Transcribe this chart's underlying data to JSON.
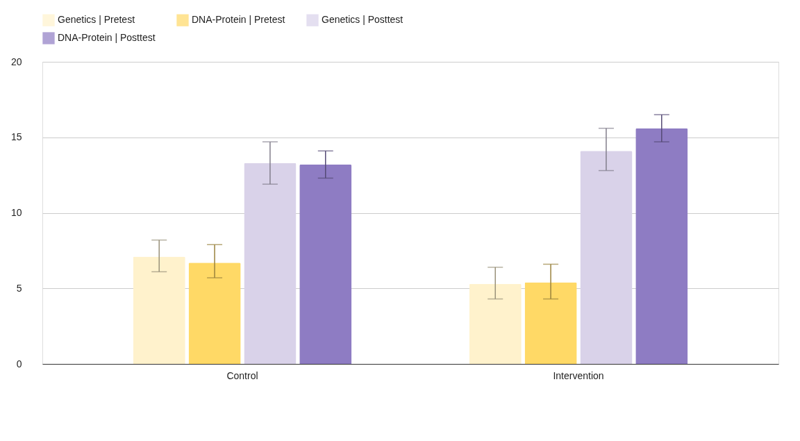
{
  "chart_data": {
    "type": "bar",
    "categories": [
      "Control",
      "Intervention"
    ],
    "series": [
      {
        "name": "Genetics | Pretest",
        "color": "#fff2cc",
        "values": [
          7.1,
          5.3
        ],
        "errors": [
          [
            6.1,
            8.2
          ],
          [
            4.3,
            6.4
          ]
        ]
      },
      {
        "name": "DNA-Protein | Pretest",
        "color": "#ffd966",
        "values": [
          6.7,
          5.4
        ],
        "errors": [
          [
            5.7,
            7.9
          ],
          [
            4.3,
            6.6
          ]
        ]
      },
      {
        "name": "Genetics | Posttest",
        "color": "#d9d2e9",
        "values": [
          13.3,
          14.1
        ],
        "errors": [
          [
            11.9,
            14.7
          ],
          [
            12.8,
            15.6
          ]
        ]
      },
      {
        "name": "DNA-Protein | Posttest",
        "color": "#8e7cc3",
        "values": [
          13.2,
          15.6
        ],
        "errors": [
          [
            12.3,
            14.1
          ],
          [
            14.7,
            16.5
          ]
        ]
      }
    ],
    "ylim": [
      0,
      20
    ],
    "yticks": [
      0,
      5,
      10,
      15,
      20
    ],
    "grid": "y",
    "legend": "top"
  }
}
